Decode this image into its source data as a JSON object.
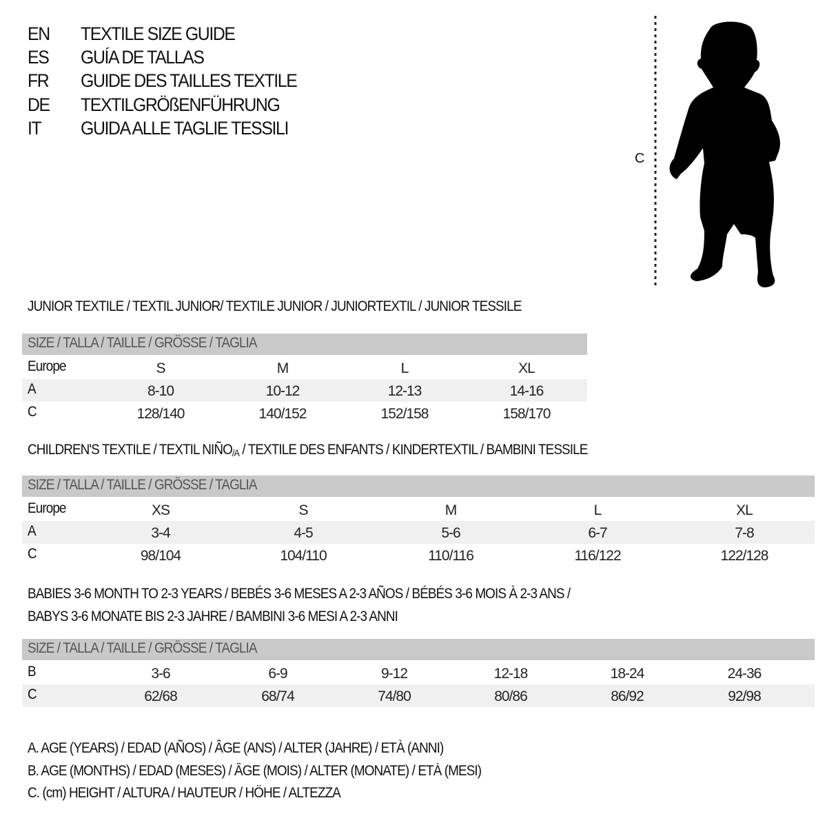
{
  "header": {
    "lines": [
      {
        "code": "EN",
        "title": "TEXTILE SIZE GUIDE"
      },
      {
        "code": "ES",
        "title": "GUÍA DE TALLAS"
      },
      {
        "code": "FR",
        "title": "GUIDE DES TAILLES TEXTILE"
      },
      {
        "code": "DE",
        "title": "TEXTILGRÖßENFÜHRUNG"
      },
      {
        "code": "IT",
        "title": "GUIDA ALLE TAGLIE TESSILI"
      }
    ]
  },
  "figure": {
    "measure_label": "C",
    "icon": "child-silhouette"
  },
  "junior": {
    "title": "JUNIOR TEXTILE / TEXTIL JUNIOR/ TEXTILE JUNIOR / JUNIORTEXTIL / JUNIOR TESSILE",
    "header": "SIZE / TALLA / TAILLE / GRÖSSE / TAGLIA",
    "rows": [
      {
        "label": "Europe",
        "values": [
          "S",
          "M",
          "L",
          "XL"
        ]
      },
      {
        "label": "A",
        "values": [
          "8-10",
          "10-12",
          "12-13",
          "14-16"
        ]
      },
      {
        "label": "C",
        "values": [
          "128/140",
          "140/152",
          "152/158",
          "158/170"
        ]
      }
    ]
  },
  "children": {
    "title_pre": "CHILDREN'S TEXTILE / TEXTIL NIÑO",
    "title_sub": "/A",
    "title_post": " / TEXTILE DES ENFANTS / KINDERTEXTIL / BAMBINI TESSILE",
    "header": "SIZE / TALLA / TAILLE / GRÖSSE / TAGLIA",
    "rows": [
      {
        "label": "Europe",
        "values": [
          "XS",
          "S",
          "M",
          "L",
          "XL"
        ]
      },
      {
        "label": "A",
        "values": [
          "3-4",
          "4-5",
          "5-6",
          "6-7",
          "7-8"
        ]
      },
      {
        "label": "C",
        "values": [
          "98/104",
          "104/110",
          "110/116",
          "116/122",
          "122/128"
        ]
      }
    ]
  },
  "babies": {
    "title_line1": "BABIES 3-6 MONTH TO 2-3 YEARS / BEBÉS 3-6 MESES A 2-3 AÑOS / BÉBÉS 3-6 MOIS À 2-3 ANS /",
    "title_line2": "BABYS 3-6 MONATE BIS 2-3 JAHRE / BAMBINI 3-6 MESI A 2-3 ANNI",
    "header": "SIZE / TALLA / TAILLE / GRÖSSE / TAGLIA",
    "rows": [
      {
        "label": "B",
        "values": [
          "3-6",
          "6-9",
          "9-12",
          "12-18",
          "18-24",
          "24-36"
        ]
      },
      {
        "label": "C",
        "values": [
          "62/68",
          "68/74",
          "74/80",
          "80/86",
          "86/92",
          "92/98"
        ]
      }
    ]
  },
  "legend": [
    "A. AGE (YEARS) / EDAD (AÑOS) / ÂGE (ANS) / ALTER (JAHRE) / ETÀ (ANNI)",
    "B. AGE (MONTHS) / EDAD (MESES) / ÂGE (MOIS) / ALTER (MONATE) / ETÀ (MESI)",
    "C. (cm) HEIGHT / ALTURA / HAUTEUR / HÖHE / ALTEZZA"
  ],
  "colors": {
    "header_bar": "#c9c9c9",
    "alt_row": "#f0f0f0",
    "text": "#111111"
  }
}
